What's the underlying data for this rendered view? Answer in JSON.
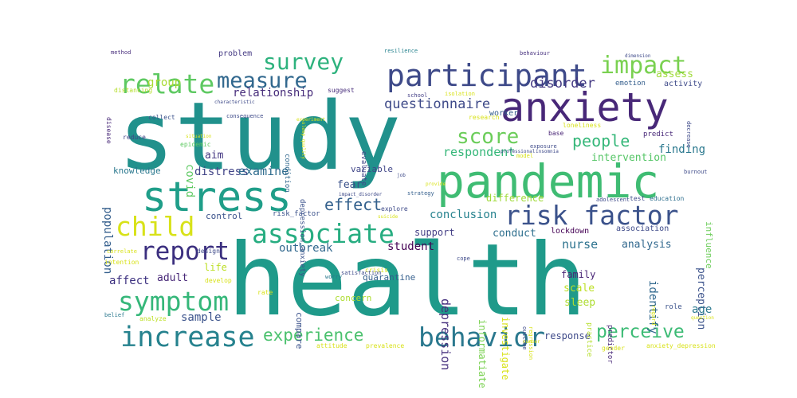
{
  "words": [
    {
      "text": "study",
      "color": "#21918c"
    },
    {
      "text": "health",
      "color": "#1f9a8a"
    },
    {
      "text": "anxiety",
      "color": "#482878"
    },
    {
      "text": "pandemic",
      "color": "#3fbc73"
    },
    {
      "text": "stress",
      "color": "#1f9e89"
    },
    {
      "text": "participant",
      "color": "#3e4a89"
    },
    {
      "text": "survey",
      "color": "#2db27d"
    },
    {
      "text": "impact",
      "color": "#7ad151"
    },
    {
      "text": "relate",
      "color": "#5ec962"
    },
    {
      "text": "measure",
      "color": "#31688e"
    },
    {
      "text": "score",
      "color": "#6ccd5a"
    },
    {
      "text": "people",
      "color": "#35b779"
    },
    {
      "text": "child",
      "color": "#d8e219"
    },
    {
      "text": "risk factor",
      "color": "#3b528b"
    },
    {
      "text": "associate",
      "color": "#27ad81"
    },
    {
      "text": "report",
      "color": "#3b2f7f"
    },
    {
      "text": "symptom",
      "color": "#35b779"
    },
    {
      "text": "increase",
      "color": "#26828e"
    },
    {
      "text": "behavior",
      "color": "#2a788e"
    },
    {
      "text": "perceive",
      "color": "#3cbb75"
    },
    {
      "text": "experience",
      "color": "#4ac16d"
    },
    {
      "text": "effect",
      "color": "#34618d"
    },
    {
      "text": "questionnaire",
      "color": "#3e4a89"
    },
    {
      "text": "disorder",
      "color": "#443983"
    },
    {
      "text": "relationship",
      "color": "#472d7b"
    },
    {
      "text": "group",
      "color": "#a8db34"
    },
    {
      "text": "respondent",
      "color": "#35b779"
    },
    {
      "text": "finding",
      "color": "#2a788e"
    },
    {
      "text": "intervention",
      "color": "#56c667"
    },
    {
      "text": "assess",
      "color": "#9fda3a"
    },
    {
      "text": "activity",
      "color": "#3e4a89"
    },
    {
      "text": "aim",
      "color": "#453882"
    },
    {
      "text": "distress",
      "color": "#414487"
    },
    {
      "text": "examine",
      "color": "#2f6c8e"
    },
    {
      "text": "covid",
      "color": "#5ec962"
    },
    {
      "text": "population",
      "color": "#355f8d"
    },
    {
      "text": "knowledge",
      "color": "#2a788e"
    },
    {
      "text": "fear",
      "color": "#3b528b"
    },
    {
      "text": "variable",
      "color": "#404688"
    },
    {
      "text": "difference",
      "color": "#a0da39"
    },
    {
      "text": "conclusion",
      "color": "#26828e"
    },
    {
      "text": "support",
      "color": "#433e85"
    },
    {
      "text": "conduct",
      "color": "#2e6f8e"
    },
    {
      "text": "student",
      "color": "#440154"
    },
    {
      "text": "outbreak",
      "color": "#31688e"
    },
    {
      "text": "lockdown",
      "color": "#440154"
    },
    {
      "text": "association",
      "color": "#3e4a89"
    },
    {
      "text": "analysis",
      "color": "#31688e"
    },
    {
      "text": "nurse",
      "color": "#2c728e"
    },
    {
      "text": "perception",
      "color": "#3b528b"
    },
    {
      "text": "influence",
      "color": "#6ccd5a"
    },
    {
      "text": "identify",
      "color": "#31688e"
    },
    {
      "text": "age",
      "color": "#2a788e"
    },
    {
      "text": "family",
      "color": "#482475"
    },
    {
      "text": "scale",
      "color": "#bddf26"
    },
    {
      "text": "sleep",
      "color": "#addc30"
    },
    {
      "text": "depression",
      "color": "#46307e"
    },
    {
      "text": "informatiate",
      "color": "#7ad151"
    },
    {
      "text": "investigate",
      "color": "#d8e219"
    },
    {
      "text": "affect",
      "color": "#3b2f7f"
    },
    {
      "text": "adult",
      "color": "#482878"
    },
    {
      "text": "life",
      "color": "#bddf26"
    },
    {
      "text": "sample",
      "color": "#3b528b"
    },
    {
      "text": "response",
      "color": "#3e4a89"
    },
    {
      "text": "concern",
      "color": "#addc30"
    },
    {
      "text": "compare",
      "color": "#3b528b"
    },
    {
      "text": "quarantine",
      "color": "#355f8d"
    },
    {
      "text": "control",
      "color": "#3b528b"
    },
    {
      "text": "problem",
      "color": "#443983"
    },
    {
      "text": "worker",
      "color": "#355f8d"
    },
    {
      "text": "emotion",
      "color": "#355f8d"
    },
    {
      "text": "predictor",
      "color": "#482878"
    },
    {
      "text": "practice",
      "color": "#b5de2b"
    },
    {
      "text": "role",
      "color": "#3b528b"
    },
    {
      "text": "gender",
      "color": "#d8e219"
    },
    {
      "text": "method",
      "color": "#472d7b"
    },
    {
      "text": "resilience",
      "color": "#26828e"
    },
    {
      "text": "behaviour",
      "color": "#46307e"
    },
    {
      "text": "suggest",
      "color": "#472d7b"
    },
    {
      "text": "school",
      "color": "#433e85"
    },
    {
      "text": "collect",
      "color": "#3b528b"
    },
    {
      "text": "distancing",
      "color": "#b5de2b"
    },
    {
      "text": "disease",
      "color": "#482878"
    },
    {
      "text": "reduce",
      "color": "#414487"
    },
    {
      "text": "loneliness",
      "color": "#d8e219"
    },
    {
      "text": "predict",
      "color": "#482878"
    },
    {
      "text": "base",
      "color": "#482475"
    },
    {
      "text": "research",
      "color": "#d8e219"
    },
    {
      "text": "condition",
      "color": "#31688e"
    },
    {
      "text": "evaluate",
      "color": "#404688"
    },
    {
      "text": "epidemic",
      "color": "#5ec962"
    },
    {
      "text": "situation",
      "color": "#d8e219"
    },
    {
      "text": "strategy",
      "color": "#355f8d"
    },
    {
      "text": "explore",
      "color": "#3e4a89"
    },
    {
      "text": "test",
      "color": "#3e4a89"
    },
    {
      "text": "education",
      "color": "#2e6f8e"
    },
    {
      "text": "risk_factor",
      "color": "#3b528b"
    },
    {
      "text": "depression_anxiety",
      "color": "#3b528b"
    },
    {
      "text": "attitude",
      "color": "#d8e219"
    },
    {
      "text": "prevalence",
      "color": "#d8e219"
    },
    {
      "text": "anxiety_depression",
      "color": "#d8e219"
    },
    {
      "text": "design",
      "color": "#3e4a89"
    },
    {
      "text": "develop",
      "color": "#d8e219"
    },
    {
      "text": "intention",
      "color": "#d8e219"
    },
    {
      "text": "worry",
      "color": "#2a788e"
    },
    {
      "text": "rate",
      "color": "#d8e219"
    },
    {
      "text": "belief",
      "color": "#2a788e"
    },
    {
      "text": "analyze",
      "color": "#bddf26"
    },
    {
      "text": "outcome",
      "color": "#3e4a89"
    },
    {
      "text": "regression",
      "color": "#d8e219"
    },
    {
      "text": "isolation",
      "color": "#d8e219"
    },
    {
      "text": "model",
      "color": "#d8e219"
    },
    {
      "text": "crisis",
      "color": "#d8e219"
    },
    {
      "text": "cope",
      "color": "#3e4a89"
    },
    {
      "text": "satisfaction",
      "color": "#3e4a89"
    },
    {
      "text": "burnout",
      "color": "#3e4a89"
    },
    {
      "text": "adolescent",
      "color": "#3e4a89"
    },
    {
      "text": "consequence",
      "color": "#3e4a89"
    },
    {
      "text": "dimension",
      "color": "#3e4a89"
    },
    {
      "text": "decrease",
      "color": "#3e4a89"
    },
    {
      "text": "correlate",
      "color": "#d8e219"
    },
    {
      "text": "suicide",
      "color": "#d8e219"
    },
    {
      "text": "regard",
      "color": "#d8e219"
    },
    {
      "text": "characteristic",
      "color": "#3e4a89"
    },
    {
      "text": "job",
      "color": "#3e4a89"
    },
    {
      "text": "exposure",
      "color": "#3e4a89"
    },
    {
      "text": "question",
      "color": "#d8e219"
    },
    {
      "text": "experiment",
      "color": "#d8e219"
    },
    {
      "text": "sleep_quality",
      "color": "#d8e219"
    },
    {
      "text": "provide",
      "color": "#d8e219"
    },
    {
      "text": "professional",
      "color": "#3e4a89"
    },
    {
      "text": "number",
      "color": "#d8e219"
    },
    {
      "text": "insomnia",
      "color": "#3e4a89"
    },
    {
      "text": "impact_disorder",
      "color": "#3e4a89"
    }
  ]
}
